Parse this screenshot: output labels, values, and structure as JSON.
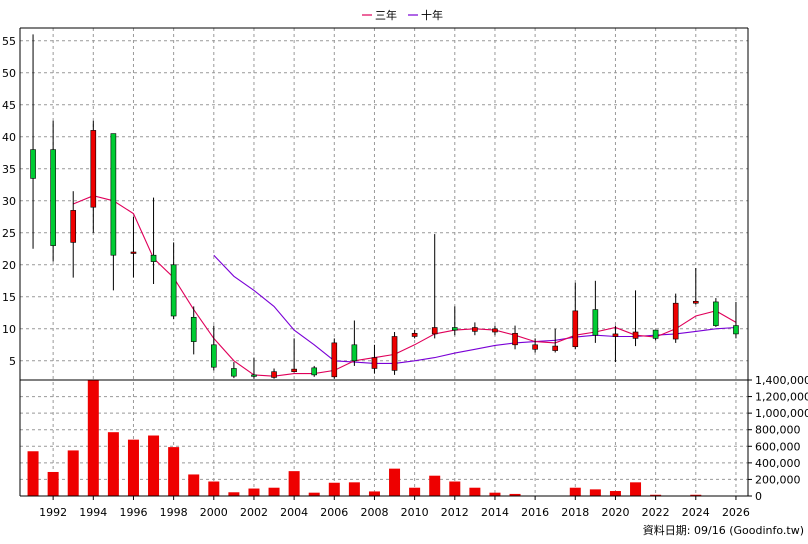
{
  "chart_data": {
    "type": "candlestick+bar",
    "legend": [
      {
        "name": "三年",
        "color": "#e0005a"
      },
      {
        "name": "十年",
        "color": "#7a00d6"
      }
    ],
    "price_axis": {
      "ylim": [
        2,
        57
      ],
      "ticks": [
        5,
        10,
        15,
        20,
        25,
        30,
        35,
        40,
        45,
        50,
        55
      ]
    },
    "volume_axis": {
      "ylim": [
        0,
        1400000
      ],
      "ticks": [
        0,
        200000,
        400000,
        600000,
        800000,
        1000000,
        1200000,
        1400000
      ],
      "tick_labels": [
        "0",
        "200,000",
        "400,000",
        "600,000",
        "800,000",
        "1,000,000",
        "1,200,000",
        "1,400,000"
      ]
    },
    "x_ticks": [
      1992,
      1994,
      1996,
      1998,
      2000,
      2002,
      2004,
      2006,
      2008,
      2010,
      2012,
      2014,
      2016,
      2018,
      2020,
      2022,
      2024,
      2026
    ],
    "candles": [
      {
        "year": 1991,
        "open": 33.5,
        "high": 56,
        "low": 22.5,
        "close": 38
      },
      {
        "year": 1992,
        "open": 23,
        "high": 42.5,
        "low": 20.5,
        "close": 38
      },
      {
        "year": 1993,
        "open": 28.5,
        "high": 31.5,
        "low": 18,
        "close": 23.5
      },
      {
        "year": 1994,
        "open": 41,
        "high": 42.5,
        "low": 25,
        "close": 29
      },
      {
        "year": 1995,
        "open": 21.5,
        "high": 40.5,
        "low": 16,
        "close": 40.5
      },
      {
        "year": 1996,
        "open": 22,
        "high": 27.5,
        "low": 18,
        "close": 21.8
      },
      {
        "year": 1997,
        "open": 20.5,
        "high": 30.5,
        "low": 17,
        "close": 21.5
      },
      {
        "year": 1998,
        "open": 12,
        "high": 23.5,
        "low": 11.5,
        "close": 20
      },
      {
        "year": 1999,
        "open": 8,
        "high": 13.5,
        "low": 6,
        "close": 11.8
      },
      {
        "year": 2000,
        "open": 4,
        "high": 10.5,
        "low": 3.5,
        "close": 7.5
      },
      {
        "year": 2001,
        "open": 2.6,
        "high": 4.8,
        "low": 2.3,
        "close": 3.8
      },
      {
        "year": 2002,
        "open": 2.8,
        "high": 5.5,
        "low": 2.2,
        "close": 2.8
      },
      {
        "year": 2003,
        "open": 3.3,
        "high": 3.8,
        "low": 2.2,
        "close": 2.4
      },
      {
        "year": 2004,
        "open": 3.7,
        "high": 8.5,
        "low": 3.2,
        "close": 3.3
      },
      {
        "year": 2005,
        "open": 2.8,
        "high": 4.2,
        "low": 2.5,
        "close": 3.9
      },
      {
        "year": 2006,
        "open": 7.8,
        "high": 8.5,
        "low": 2.2,
        "close": 2.5
      },
      {
        "year": 2007,
        "open": 5,
        "high": 11.3,
        "low": 4.2,
        "close": 7.5
      },
      {
        "year": 2008,
        "open": 5.5,
        "high": 7.5,
        "low": 3,
        "close": 3.8
      },
      {
        "year": 2009,
        "open": 8.8,
        "high": 9.5,
        "low": 2.8,
        "close": 3.5
      },
      {
        "year": 2010,
        "open": 9.3,
        "high": 9.8,
        "low": 8.5,
        "close": 8.8
      },
      {
        "year": 2011,
        "open": 10.2,
        "high": 24.8,
        "low": 8.5,
        "close": 9.2
      },
      {
        "year": 2012,
        "open": 9.8,
        "high": 13.5,
        "low": 9,
        "close": 10.2
      },
      {
        "year": 2013,
        "open": 10.2,
        "high": 11,
        "low": 9,
        "close": 9.6
      },
      {
        "year": 2014,
        "open": 10,
        "high": 10.5,
        "low": 9,
        "close": 9.5
      },
      {
        "year": 2015,
        "open": 9.3,
        "high": 10.5,
        "low": 6.8,
        "close": 7.5
      },
      {
        "year": 2016,
        "open": 7.5,
        "high": 8.5,
        "low": 6.3,
        "close": 6.8
      },
      {
        "year": 2017,
        "open": 7.3,
        "high": 10,
        "low": 6.3,
        "close": 6.6
      },
      {
        "year": 2018,
        "open": 12.8,
        "high": 17.2,
        "low": 6.8,
        "close": 7.2
      },
      {
        "year": 2019,
        "open": 9,
        "high": 17.5,
        "low": 7.8,
        "close": 13
      },
      {
        "year": 2020,
        "open": 9.2,
        "high": 10.5,
        "low": 4.8,
        "close": 8.8
      },
      {
        "year": 2021,
        "open": 9.5,
        "high": 16,
        "low": 7.3,
        "close": 8.5
      },
      {
        "year": 2022,
        "open": 8.5,
        "high": 9.8,
        "low": 8.2,
        "close": 9.8
      },
      {
        "year": 2023,
        "open": 14,
        "high": 15.5,
        "low": 7.8,
        "close": 8.4
      },
      {
        "year": 2024,
        "open": 14.3,
        "high": 19.5,
        "low": 13.8,
        "close": 14
      },
      {
        "year": 2025,
        "open": 10.5,
        "high": 14.8,
        "low": 10.3,
        "close": 14.2
      },
      {
        "year": 2026,
        "open": 9.2,
        "high": 14.2,
        "low": 8.5,
        "close": 10.5
      }
    ],
    "ma3": [
      {
        "year": 1993,
        "value": 29.5
      },
      {
        "year": 1994,
        "value": 30.8
      },
      {
        "year": 1995,
        "value": 30
      },
      {
        "year": 1996,
        "value": 28
      },
      {
        "year": 1997,
        "value": 21
      },
      {
        "year": 1998,
        "value": 18
      },
      {
        "year": 1999,
        "value": 13
      },
      {
        "year": 2000,
        "value": 8.5
      },
      {
        "year": 2001,
        "value": 5
      },
      {
        "year": 2002,
        "value": 2.8
      },
      {
        "year": 2003,
        "value": 2.6
      },
      {
        "year": 2004,
        "value": 3
      },
      {
        "year": 2005,
        "value": 3
      },
      {
        "year": 2006,
        "value": 3.5
      },
      {
        "year": 2007,
        "value": 5
      },
      {
        "year": 2008,
        "value": 5.5
      },
      {
        "year": 2009,
        "value": 6
      },
      {
        "year": 2010,
        "value": 7.5
      },
      {
        "year": 2011,
        "value": 9.2
      },
      {
        "year": 2012,
        "value": 9.8
      },
      {
        "year": 2013,
        "value": 10
      },
      {
        "year": 2014,
        "value": 9.8
      },
      {
        "year": 2015,
        "value": 9
      },
      {
        "year": 2016,
        "value": 8
      },
      {
        "year": 2017,
        "value": 7.8
      },
      {
        "year": 2018,
        "value": 9
      },
      {
        "year": 2019,
        "value": 9.5
      },
      {
        "year": 2020,
        "value": 10.2
      },
      {
        "year": 2021,
        "value": 9
      },
      {
        "year": 2022,
        "value": 8.7
      },
      {
        "year": 2023,
        "value": 10
      },
      {
        "year": 2024,
        "value": 12
      },
      {
        "year": 2025,
        "value": 12.8
      },
      {
        "year": 2026,
        "value": 11
      }
    ],
    "ma10": [
      {
        "year": 2000,
        "value": 21.5
      },
      {
        "year": 2001,
        "value": 18.2
      },
      {
        "year": 2002,
        "value": 16
      },
      {
        "year": 2003,
        "value": 13.5
      },
      {
        "year": 2004,
        "value": 9.8
      },
      {
        "year": 2005,
        "value": 7.5
      },
      {
        "year": 2006,
        "value": 5
      },
      {
        "year": 2007,
        "value": 4.8
      },
      {
        "year": 2008,
        "value": 4.6
      },
      {
        "year": 2009,
        "value": 4.6
      },
      {
        "year": 2010,
        "value": 5
      },
      {
        "year": 2011,
        "value": 5.5
      },
      {
        "year": 2012,
        "value": 6.2
      },
      {
        "year": 2013,
        "value": 6.8
      },
      {
        "year": 2014,
        "value": 7.4
      },
      {
        "year": 2015,
        "value": 7.8
      },
      {
        "year": 2016,
        "value": 8
      },
      {
        "year": 2017,
        "value": 8.2
      },
      {
        "year": 2018,
        "value": 8.7
      },
      {
        "year": 2019,
        "value": 9
      },
      {
        "year": 2020,
        "value": 8.8
      },
      {
        "year": 2021,
        "value": 8.8
      },
      {
        "year": 2022,
        "value": 9
      },
      {
        "year": 2023,
        "value": 9.2
      },
      {
        "year": 2024,
        "value": 9.6
      },
      {
        "year": 2025,
        "value": 10
      },
      {
        "year": 2026,
        "value": 10.2
      }
    ],
    "volume": [
      {
        "year": 1991,
        "value": 540000
      },
      {
        "year": 1992,
        "value": 290000
      },
      {
        "year": 1993,
        "value": 550000
      },
      {
        "year": 1994,
        "value": 1400000
      },
      {
        "year": 1995,
        "value": 770000
      },
      {
        "year": 1996,
        "value": 680000
      },
      {
        "year": 1997,
        "value": 730000
      },
      {
        "year": 1998,
        "value": 590000
      },
      {
        "year": 1999,
        "value": 260000
      },
      {
        "year": 2000,
        "value": 175000
      },
      {
        "year": 2001,
        "value": 45000
      },
      {
        "year": 2002,
        "value": 90000
      },
      {
        "year": 2003,
        "value": 100000
      },
      {
        "year": 2004,
        "value": 300000
      },
      {
        "year": 2005,
        "value": 40000
      },
      {
        "year": 2006,
        "value": 160000
      },
      {
        "year": 2007,
        "value": 165000
      },
      {
        "year": 2008,
        "value": 55000
      },
      {
        "year": 2009,
        "value": 330000
      },
      {
        "year": 2010,
        "value": 100000
      },
      {
        "year": 2011,
        "value": 245000
      },
      {
        "year": 2012,
        "value": 175000
      },
      {
        "year": 2013,
        "value": 100000
      },
      {
        "year": 2014,
        "value": 40000
      },
      {
        "year": 2015,
        "value": 25000
      },
      {
        "year": 2016,
        "value": 5000
      },
      {
        "year": 2017,
        "value": 5000
      },
      {
        "year": 2018,
        "value": 100000
      },
      {
        "year": 2019,
        "value": 80000
      },
      {
        "year": 2020,
        "value": 60000
      },
      {
        "year": 2021,
        "value": 165000
      },
      {
        "year": 2022,
        "value": 15000
      },
      {
        "year": 2023,
        "value": 5000
      },
      {
        "year": 2024,
        "value": 15000
      },
      {
        "year": 2025,
        "value": 5000
      },
      {
        "year": 2026,
        "value": 3000
      }
    ],
    "colors": {
      "up": "#00cc33",
      "down": "#ee0000",
      "volume": "#ee0000",
      "grid": "#999999"
    }
  },
  "footer": {
    "note": "資料日期: 09/16  (Goodinfo.tw)"
  }
}
